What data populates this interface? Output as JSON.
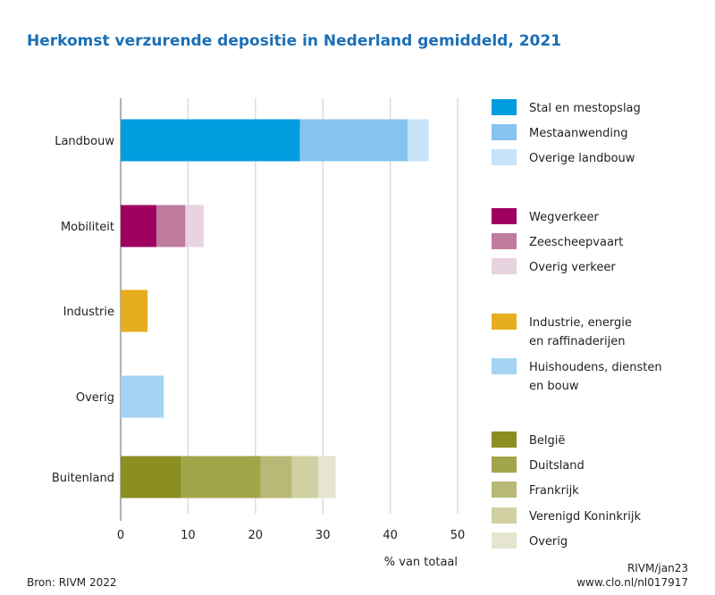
{
  "chart_data": {
    "type": "bar",
    "orientation": "horizontal",
    "stacked": true,
    "title": "Herkomst verzurende depositie in Nederland gemiddeld, 2021",
    "xlabel": "% van totaal",
    "xlim": [
      0,
      50
    ],
    "xticks": [
      "0",
      "10",
      "20",
      "30",
      "40",
      "50"
    ],
    "grid": true,
    "legend_position": "right",
    "categories": [
      {
        "label": "Landbouw",
        "segments": [
          {
            "name": "Stal en mestopslag",
            "value": 26.6,
            "color": "#009ddf"
          },
          {
            "name": "Mestaanwending",
            "value": 16.0,
            "color": "#86c4ef"
          },
          {
            "name": "Overige landbouw",
            "value": 3.1,
            "color": "#c6e3f8"
          }
        ]
      },
      {
        "label": "Mobiliteit",
        "segments": [
          {
            "name": "Wegverkeer",
            "value": 5.3,
            "color": "#9e0060"
          },
          {
            "name": "Zeescheepvaart",
            "value": 4.3,
            "color": "#bf7b9e"
          },
          {
            "name": "Overig verkeer",
            "value": 2.7,
            "color": "#e8d3e0"
          }
        ]
      },
      {
        "label": "Industrie",
        "segments": [
          {
            "name": "Industrie, energie en raffinaderijen",
            "value": 4.0,
            "color": "#e6ad1f"
          }
        ]
      },
      {
        "label": "Overig",
        "segments": [
          {
            "name": "Huishoudens, diensten en bouw",
            "value": 6.4,
            "color": "#a5d3f4"
          }
        ]
      },
      {
        "label": "Buitenland",
        "segments": [
          {
            "name": "België",
            "value": 9.0,
            "color": "#8b8f22"
          },
          {
            "name": "Duitsland",
            "value": 11.8,
            "color": "#a2a54a"
          },
          {
            "name": "Frankrijk",
            "value": 4.6,
            "color": "#b8b977"
          },
          {
            "name": "Verenigd Koninkrijk",
            "value": 3.9,
            "color": "#d0d0a2"
          },
          {
            "name": "Overig",
            "value": 2.6,
            "color": "#e6e6d0"
          }
        ]
      }
    ],
    "legend": [
      {
        "lines": [
          "Stal en mestopslag"
        ],
        "color": "#009ddf"
      },
      {
        "lines": [
          "Mestaanwending"
        ],
        "color": "#86c4ef"
      },
      {
        "lines": [
          "Overige landbouw"
        ],
        "color": "#c6e3f8"
      },
      {
        "lines": [
          "Wegverkeer"
        ],
        "color": "#9e0060"
      },
      {
        "lines": [
          "Zeescheepvaart"
        ],
        "color": "#bf7b9e"
      },
      {
        "lines": [
          "Overig verkeer"
        ],
        "color": "#e8d3e0"
      },
      {
        "lines": [
          "Industrie, energie",
          "en raffinaderijen"
        ],
        "color": "#e6ad1f"
      },
      {
        "lines": [
          "Huishoudens, diensten",
          "en bouw"
        ],
        "color": "#a5d3f4"
      },
      {
        "lines": [
          "België"
        ],
        "color": "#8b8f22"
      },
      {
        "lines": [
          "Duitsland"
        ],
        "color": "#a2a54a"
      },
      {
        "lines": [
          "Frankrijk"
        ],
        "color": "#b8b977"
      },
      {
        "lines": [
          "Verenigd Koninkrijk"
        ],
        "color": "#d0d0a2"
      },
      {
        "lines": [
          "Overig"
        ],
        "color": "#e6e6d0"
      }
    ]
  },
  "footer": {
    "source": "Bron: RIVM 2022",
    "credit": "RIVM/jan23",
    "url": "www.clo.nl/nl017917"
  },
  "title_color": "#1c6fb5"
}
